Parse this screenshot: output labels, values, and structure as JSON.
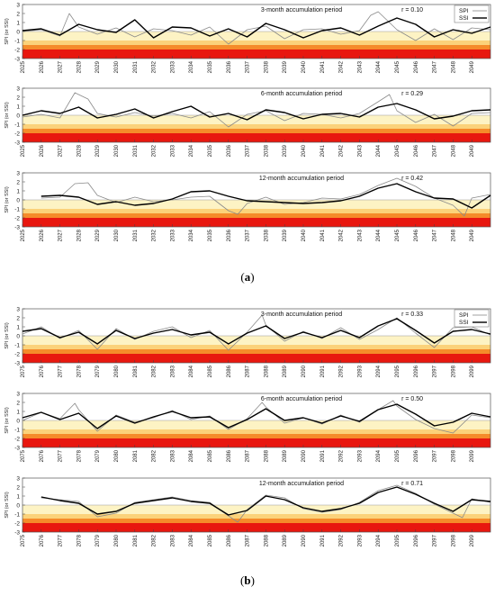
{
  "captions": {
    "a": "a",
    "b": "b"
  },
  "chart_data": [
    {
      "type": "line",
      "figure": "a",
      "panel": "3-month accumulation period",
      "title": "3-month accumulation period",
      "corr": "r = 0.10",
      "ylabel": "SPI (or SSI)",
      "ylim": [
        -3,
        3
      ],
      "yticks": [
        "3",
        "2",
        "1",
        "0",
        "-1",
        "-2",
        "-3"
      ],
      "xlim": [
        2025,
        2050
      ],
      "xticks": [
        "2025",
        "2026",
        "2027",
        "2028",
        "2029",
        "2030",
        "2031",
        "2032",
        "2033",
        "2034",
        "2035",
        "2036",
        "2037",
        "2038",
        "2039",
        "2040",
        "2041",
        "2042",
        "2043",
        "2044",
        "2045",
        "2046",
        "2047",
        "2048",
        "2049"
      ],
      "legend": [
        "SPI",
        "SSI"
      ],
      "series": [
        {
          "name": "SPI",
          "x": [
            2025,
            2026,
            2027,
            2027.5,
            2028,
            2029,
            2030,
            2031,
            2032,
            2033,
            2034,
            2035,
            2036,
            2037,
            2038,
            2039,
            2040,
            2041,
            2042,
            2043,
            2043.6,
            2044,
            2045,
            2046,
            2047,
            2048,
            2049,
            2050
          ],
          "values": [
            0,
            0.2,
            -0.5,
            2.0,
            0.5,
            -0.3,
            0.4,
            -0.6,
            0.3,
            0.1,
            -0.4,
            0.5,
            -1.4,
            0.2,
            0.6,
            -0.8,
            0.2,
            0.3,
            -0.3,
            0.1,
            1.8,
            2.2,
            0.2,
            -1.0,
            0.3,
            -0.9,
            0.4,
            0.2
          ]
        },
        {
          "name": "SSI",
          "x": [
            2025,
            2026,
            2027,
            2028,
            2029,
            2030,
            2031,
            2032,
            2033,
            2034,
            2035,
            2036,
            2037,
            2038,
            2039,
            2040,
            2041,
            2042,
            2043,
            2044,
            2045,
            2046,
            2047,
            2048,
            2049,
            2050
          ],
          "values": [
            0.1,
            0.3,
            -0.4,
            0.8,
            0.2,
            -0.1,
            1.3,
            -0.7,
            0.5,
            0.4,
            -0.5,
            0.3,
            -0.6,
            0.9,
            0.2,
            -0.7,
            0.1,
            0.4,
            -0.4,
            0.6,
            1.5,
            0.8,
            -0.6,
            0.2,
            -0.2,
            0.5
          ]
        }
      ]
    },
    {
      "type": "line",
      "figure": "a",
      "panel": "6-month accumulation period",
      "title": "6-month accumulation period",
      "corr": "r = 0.29",
      "ylabel": "SPI (or SSI)",
      "ylim": [
        -3,
        3
      ],
      "yticks": [
        "3",
        "2",
        "1",
        "0",
        "-1",
        "-2",
        "-3"
      ],
      "xlim": [
        2025,
        2050
      ],
      "xticks": [
        "2025",
        "2026",
        "2027",
        "2028",
        "2029",
        "2030",
        "2031",
        "2032",
        "2033",
        "2034",
        "2035",
        "2036",
        "2037",
        "2038",
        "2039",
        "2040",
        "2041",
        "2042",
        "2043",
        "2044",
        "2045",
        "2046",
        "2047",
        "2048",
        "2049"
      ],
      "legend": [],
      "series": [
        {
          "name": "SPI",
          "x": [
            2025,
            2026,
            2027,
            2027.8,
            2028.5,
            2029,
            2030,
            2031,
            2032,
            2033,
            2034,
            2035,
            2036,
            2037,
            2038,
            2039,
            2040,
            2041,
            2042,
            2043,
            2044,
            2044.6,
            2045,
            2046,
            2047,
            2048,
            2049,
            2050
          ],
          "values": [
            -0.2,
            0.1,
            -0.3,
            2.5,
            1.8,
            0.2,
            -0.2,
            0.3,
            -0.1,
            0.2,
            -0.3,
            0.4,
            -1.3,
            0.1,
            0.5,
            -0.6,
            0.2,
            0.1,
            -0.3,
            0.2,
            1.5,
            2.3,
            0.5,
            -0.8,
            0.1,
            -1.2,
            0.2,
            0.3
          ]
        },
        {
          "name": "SSI",
          "x": [
            2025,
            2026,
            2027,
            2028,
            2029,
            2030,
            2031,
            2032,
            2033,
            2034,
            2035,
            2036,
            2037,
            2038,
            2039,
            2040,
            2041,
            2042,
            2043,
            2044,
            2045,
            2046,
            2047,
            2048,
            2049,
            2050
          ],
          "values": [
            0,
            0.5,
            0.2,
            0.9,
            -0.3,
            0.1,
            0.7,
            -0.3,
            0.4,
            1.0,
            -0.2,
            0.2,
            -0.5,
            0.6,
            0.3,
            -0.4,
            0.1,
            0.2,
            -0.2,
            0.9,
            1.3,
            0.6,
            -0.4,
            -0.1,
            0.5,
            0.6
          ]
        }
      ]
    },
    {
      "type": "line",
      "figure": "a",
      "panel": "12-month accumulation period",
      "title": "12-month accumulation period",
      "corr": "r = 0.42",
      "ylabel": "SPI (or SSI)",
      "ylim": [
        -3,
        3
      ],
      "yticks": [
        "3",
        "2",
        "1",
        "0",
        "-1",
        "-2",
        "-3"
      ],
      "xlim": [
        2025,
        2050
      ],
      "xticks": [
        "2025",
        "2026",
        "2027",
        "2028",
        "2029",
        "2030",
        "2031",
        "2032",
        "2033",
        "2034",
        "2035",
        "2036",
        "2037",
        "2038",
        "2039",
        "2040",
        "2041",
        "2042",
        "2043",
        "2044",
        "2045",
        "2046",
        "2047",
        "2048",
        "2049"
      ],
      "legend": [],
      "series": [
        {
          "name": "SPI",
          "x": [
            2026,
            2027,
            2027.8,
            2028.5,
            2029,
            2030,
            2031,
            2032,
            2033,
            2034,
            2035,
            2036,
            2036.5,
            2037,
            2038,
            2039,
            2040,
            2041,
            2042,
            2043,
            2044,
            2045,
            2046,
            2047,
            2048,
            2048.6,
            2049,
            2050
          ],
          "values": [
            0.2,
            0.3,
            1.8,
            1.9,
            0.5,
            -0.3,
            0.3,
            -0.2,
            0,
            0.3,
            0.4,
            -1.2,
            -1.6,
            -0.4,
            0.3,
            -0.5,
            -0.3,
            0.2,
            0.1,
            0.6,
            1.6,
            2.4,
            1.5,
            0.2,
            -0.6,
            -1.8,
            0.2,
            0.6
          ]
        },
        {
          "name": "SSI",
          "x": [
            2026,
            2027,
            2028,
            2029,
            2030,
            2031,
            2032,
            2033,
            2034,
            2035,
            2036,
            2037,
            2038,
            2039,
            2040,
            2041,
            2042,
            2043,
            2044,
            2045,
            2046,
            2047,
            2048,
            2049,
            2050
          ],
          "values": [
            0.4,
            0.5,
            0.3,
            -0.5,
            -0.2,
            -0.6,
            -0.4,
            0.1,
            0.9,
            1.0,
            0.4,
            -0.1,
            -0.2,
            -0.3,
            -0.4,
            -0.3,
            -0.1,
            0.4,
            1.3,
            1.8,
            0.9,
            0.2,
            0.1,
            -0.9,
            0.5
          ]
        }
      ]
    },
    {
      "type": "line",
      "figure": "b",
      "panel": "3-month accumulation period",
      "title": "3-month accumulation period",
      "corr": "r = 0.33",
      "ylabel": "SPI (or SSI)",
      "ylim": [
        -3,
        3
      ],
      "yticks": [
        "3",
        "2",
        "1",
        "0",
        "-1",
        "-2",
        "-3"
      ],
      "xlim": [
        2075,
        2100
      ],
      "xticks": [
        "2075",
        "2076",
        "2077",
        "2078",
        "2079",
        "2080",
        "2081",
        "2082",
        "2083",
        "2084",
        "2085",
        "2086",
        "2087",
        "2088",
        "2089",
        "2090",
        "2091",
        "2092",
        "2093",
        "2094",
        "2095",
        "2096",
        "2097",
        "2098",
        "2099"
      ],
      "legend": [
        "SPI",
        "SSI"
      ],
      "series": [
        {
          "name": "SPI",
          "x": [
            2075,
            2076,
            2077,
            2078,
            2079,
            2080,
            2081,
            2082,
            2083,
            2084,
            2085,
            2086,
            2087,
            2087.8,
            2088,
            2089,
            2090,
            2091,
            2092,
            2093,
            2094,
            2095,
            2096,
            2097,
            2098,
            2099,
            2100
          ],
          "values": [
            0.2,
            1.0,
            -0.3,
            0.6,
            -1.5,
            0.8,
            -0.4,
            0.5,
            1.0,
            -0.2,
            0.6,
            -1.6,
            0.4,
            2.3,
            1.2,
            -0.6,
            0.5,
            -0.3,
            0.9,
            -0.4,
            0.7,
            2.0,
            0.3,
            -1.3,
            0.9,
            1.0,
            0.1
          ]
        },
        {
          "name": "SSI",
          "x": [
            2075,
            2076,
            2077,
            2078,
            2079,
            2080,
            2081,
            2082,
            2083,
            2084,
            2085,
            2086,
            2087,
            2088,
            2089,
            2090,
            2091,
            2092,
            2093,
            2094,
            2095,
            2096,
            2097,
            2098,
            2099,
            2100
          ],
          "values": [
            0.5,
            0.8,
            -0.2,
            0.4,
            -0.9,
            0.6,
            -0.3,
            0.3,
            0.7,
            0.1,
            0.4,
            -0.9,
            0.3,
            1.1,
            -0.3,
            0.4,
            -0.2,
            0.6,
            -0.2,
            1.1,
            1.9,
            0.6,
            -0.8,
            0.5,
            0.7,
            0.2
          ]
        }
      ]
    },
    {
      "type": "line",
      "figure": "b",
      "panel": "6-month accumulation period",
      "title": "6-month accumulation period",
      "corr": "r = 0.50",
      "ylabel": "SPI (or SSI)",
      "ylim": [
        -3,
        3
      ],
      "yticks": [
        "3",
        "2",
        "1",
        "0",
        "-1",
        "-2",
        "-3"
      ],
      "xlim": [
        2075,
        2100
      ],
      "xticks": [
        "2075",
        "2076",
        "2077",
        "2078",
        "2079",
        "2080",
        "2081",
        "2082",
        "2083",
        "2084",
        "2085",
        "2086",
        "2087",
        "2088",
        "2089",
        "2090",
        "2091",
        "2092",
        "2093",
        "2094",
        "2095",
        "2096",
        "2097",
        "2098",
        "2099"
      ],
      "legend": [],
      "series": [
        {
          "name": "SPI",
          "x": [
            2075,
            2076,
            2077,
            2077.8,
            2078,
            2079,
            2080,
            2081,
            2082,
            2083,
            2084,
            2085,
            2086,
            2087,
            2087.8,
            2088,
            2089,
            2090,
            2091,
            2092,
            2093,
            2094,
            2094.8,
            2095,
            2096,
            2097,
            2098,
            2099,
            2100
          ],
          "values": [
            0,
            0.9,
            0.2,
            1.9,
            1.2,
            -1.2,
            0.6,
            -0.2,
            0.3,
            1.1,
            0.1,
            0.5,
            -1.0,
            0.2,
            2.0,
            1.5,
            -0.3,
            0.3,
            -0.4,
            0.6,
            -0.2,
            1.2,
            2.2,
            1.6,
            0.1,
            -0.9,
            -1.4,
            0.6,
            0.3
          ]
        },
        {
          "name": "SSI",
          "x": [
            2075,
            2076,
            2077,
            2078,
            2079,
            2080,
            2081,
            2082,
            2083,
            2084,
            2085,
            2086,
            2087,
            2088,
            2089,
            2090,
            2091,
            2092,
            2093,
            2094,
            2095,
            2096,
            2097,
            2098,
            2099,
            2100
          ],
          "values": [
            0.3,
            0.9,
            0.1,
            0.8,
            -0.9,
            0.5,
            -0.3,
            0.4,
            1.0,
            0.3,
            0.4,
            -0.8,
            0.1,
            1.3,
            0,
            0.3,
            -0.3,
            0.5,
            -0.1,
            1.2,
            1.8,
            0.7,
            -0.6,
            -0.2,
            0.8,
            0.4
          ]
        }
      ]
    },
    {
      "type": "line",
      "figure": "b",
      "panel": "12-month accumulation period",
      "title": "12-month accumulation period",
      "corr": "r = 0.71",
      "ylabel": "SPI (or SSI)",
      "ylim": [
        -3,
        3
      ],
      "yticks": [
        "3",
        "2",
        "1",
        "0",
        "-1",
        "-2",
        "-3"
      ],
      "xlim": [
        2075,
        2100
      ],
      "xticks": [
        "2075",
        "2076",
        "2077",
        "2078",
        "2079",
        "2080",
        "2081",
        "2082",
        "2083",
        "2084",
        "2085",
        "2086",
        "2087",
        "2088",
        "2089",
        "2090",
        "2091",
        "2092",
        "2093",
        "2094",
        "2095",
        "2096",
        "2097",
        "2098",
        "2099"
      ],
      "legend": [],
      "series": [
        {
          "name": "SPI",
          "x": [
            2076,
            2077,
            2078,
            2079,
            2080,
            2081,
            2082,
            2083,
            2084,
            2085,
            2086,
            2086.5,
            2087,
            2088,
            2089,
            2090,
            2091,
            2092,
            2093,
            2094,
            2095,
            2096,
            2097,
            2098,
            2098.5,
            2099,
            2100
          ],
          "values": [
            0.8,
            0.6,
            0.4,
            -1.3,
            -0.9,
            0.3,
            0.6,
            0.9,
            0.5,
            0.3,
            -1.2,
            -1.9,
            -0.5,
            1.1,
            0.8,
            -0.4,
            -0.8,
            -0.5,
            0.3,
            1.6,
            2.2,
            1.3,
            0.1,
            -0.9,
            -1.4,
            0.7,
            0.3
          ]
        },
        {
          "name": "SSI",
          "x": [
            2076,
            2077,
            2078,
            2079,
            2080,
            2081,
            2082,
            2083,
            2084,
            2085,
            2086,
            2087,
            2088,
            2089,
            2090,
            2091,
            2092,
            2093,
            2094,
            2095,
            2096,
            2097,
            2098,
            2099,
            2100
          ],
          "values": [
            0.9,
            0.5,
            0.2,
            -1.0,
            -0.7,
            0.2,
            0.5,
            0.8,
            0.4,
            0.2,
            -1.1,
            -0.6,
            1.0,
            0.6,
            -0.3,
            -0.7,
            -0.4,
            0.2,
            1.4,
            2.0,
            1.2,
            0.2,
            -0.7,
            0.6,
            0.4
          ]
        }
      ]
    }
  ]
}
